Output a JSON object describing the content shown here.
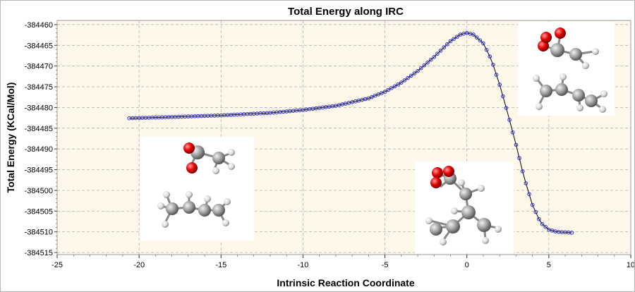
{
  "chart_data": {
    "type": "line",
    "title": "Total Energy along IRC",
    "xlabel": "Intrinsic Reaction Coordinate",
    "ylabel": "Total Energy (KCal/Mol)",
    "xlim": [
      -25,
      10
    ],
    "ylim": [
      -384515.5,
      -384459
    ],
    "x_ticks": [
      "-25",
      "-20",
      "-15",
      "-10",
      "-5",
      "0",
      "5",
      "10"
    ],
    "y_ticks": [
      "-384460",
      "-384465",
      "-384470",
      "-384475",
      "-384480",
      "-384485",
      "-384490",
      "-384495",
      "-384500",
      "-384505",
      "-384510",
      "-384515"
    ],
    "grid": true,
    "series": [
      {
        "marker": "circle",
        "line_color": "#000000",
        "marker_color": "#2b2bd6",
        "x_start": -20.6,
        "x_step": 0.2,
        "x_end": 6.4,
        "curve_points": [
          {
            "x": -20.6,
            "y": -384482.6
          },
          {
            "x": -18,
            "y": -384482.3
          },
          {
            "x": -15,
            "y": -384481.9
          },
          {
            "x": -12,
            "y": -384481.3
          },
          {
            "x": -10,
            "y": -384480.6
          },
          {
            "x": -8,
            "y": -384479.6
          },
          {
            "x": -6,
            "y": -384477.8
          },
          {
            "x": -5,
            "y": -384476.2
          },
          {
            "x": -4,
            "y": -384474.0
          },
          {
            "x": -3,
            "y": -384471.2
          },
          {
            "x": -2,
            "y": -384467.8
          },
          {
            "x": -1,
            "y": -384464.0
          },
          {
            "x": -0.4,
            "y": -384462.4
          },
          {
            "x": 0,
            "y": -384462.0
          },
          {
            "x": 0.4,
            "y": -384462.4
          },
          {
            "x": 1,
            "y": -384464.5
          },
          {
            "x": 1.5,
            "y": -384468.5
          },
          {
            "x": 2,
            "y": -384474.5
          },
          {
            "x": 2.5,
            "y": -384481.5
          },
          {
            "x": 3,
            "y": -384489.0
          },
          {
            "x": 3.5,
            "y": -384497.0
          },
          {
            "x": 4,
            "y": -384503.5
          },
          {
            "x": 4.5,
            "y": -384507.8
          },
          {
            "x": 5,
            "y": -384509.5
          },
          {
            "x": 5.5,
            "y": -384510.0
          },
          {
            "x": 6.4,
            "y": -384510.2
          }
        ]
      }
    ],
    "insets": [
      {
        "name": "reactant-structure"
      },
      {
        "name": "transition-state-structure"
      },
      {
        "name": "product-structure"
      }
    ]
  }
}
